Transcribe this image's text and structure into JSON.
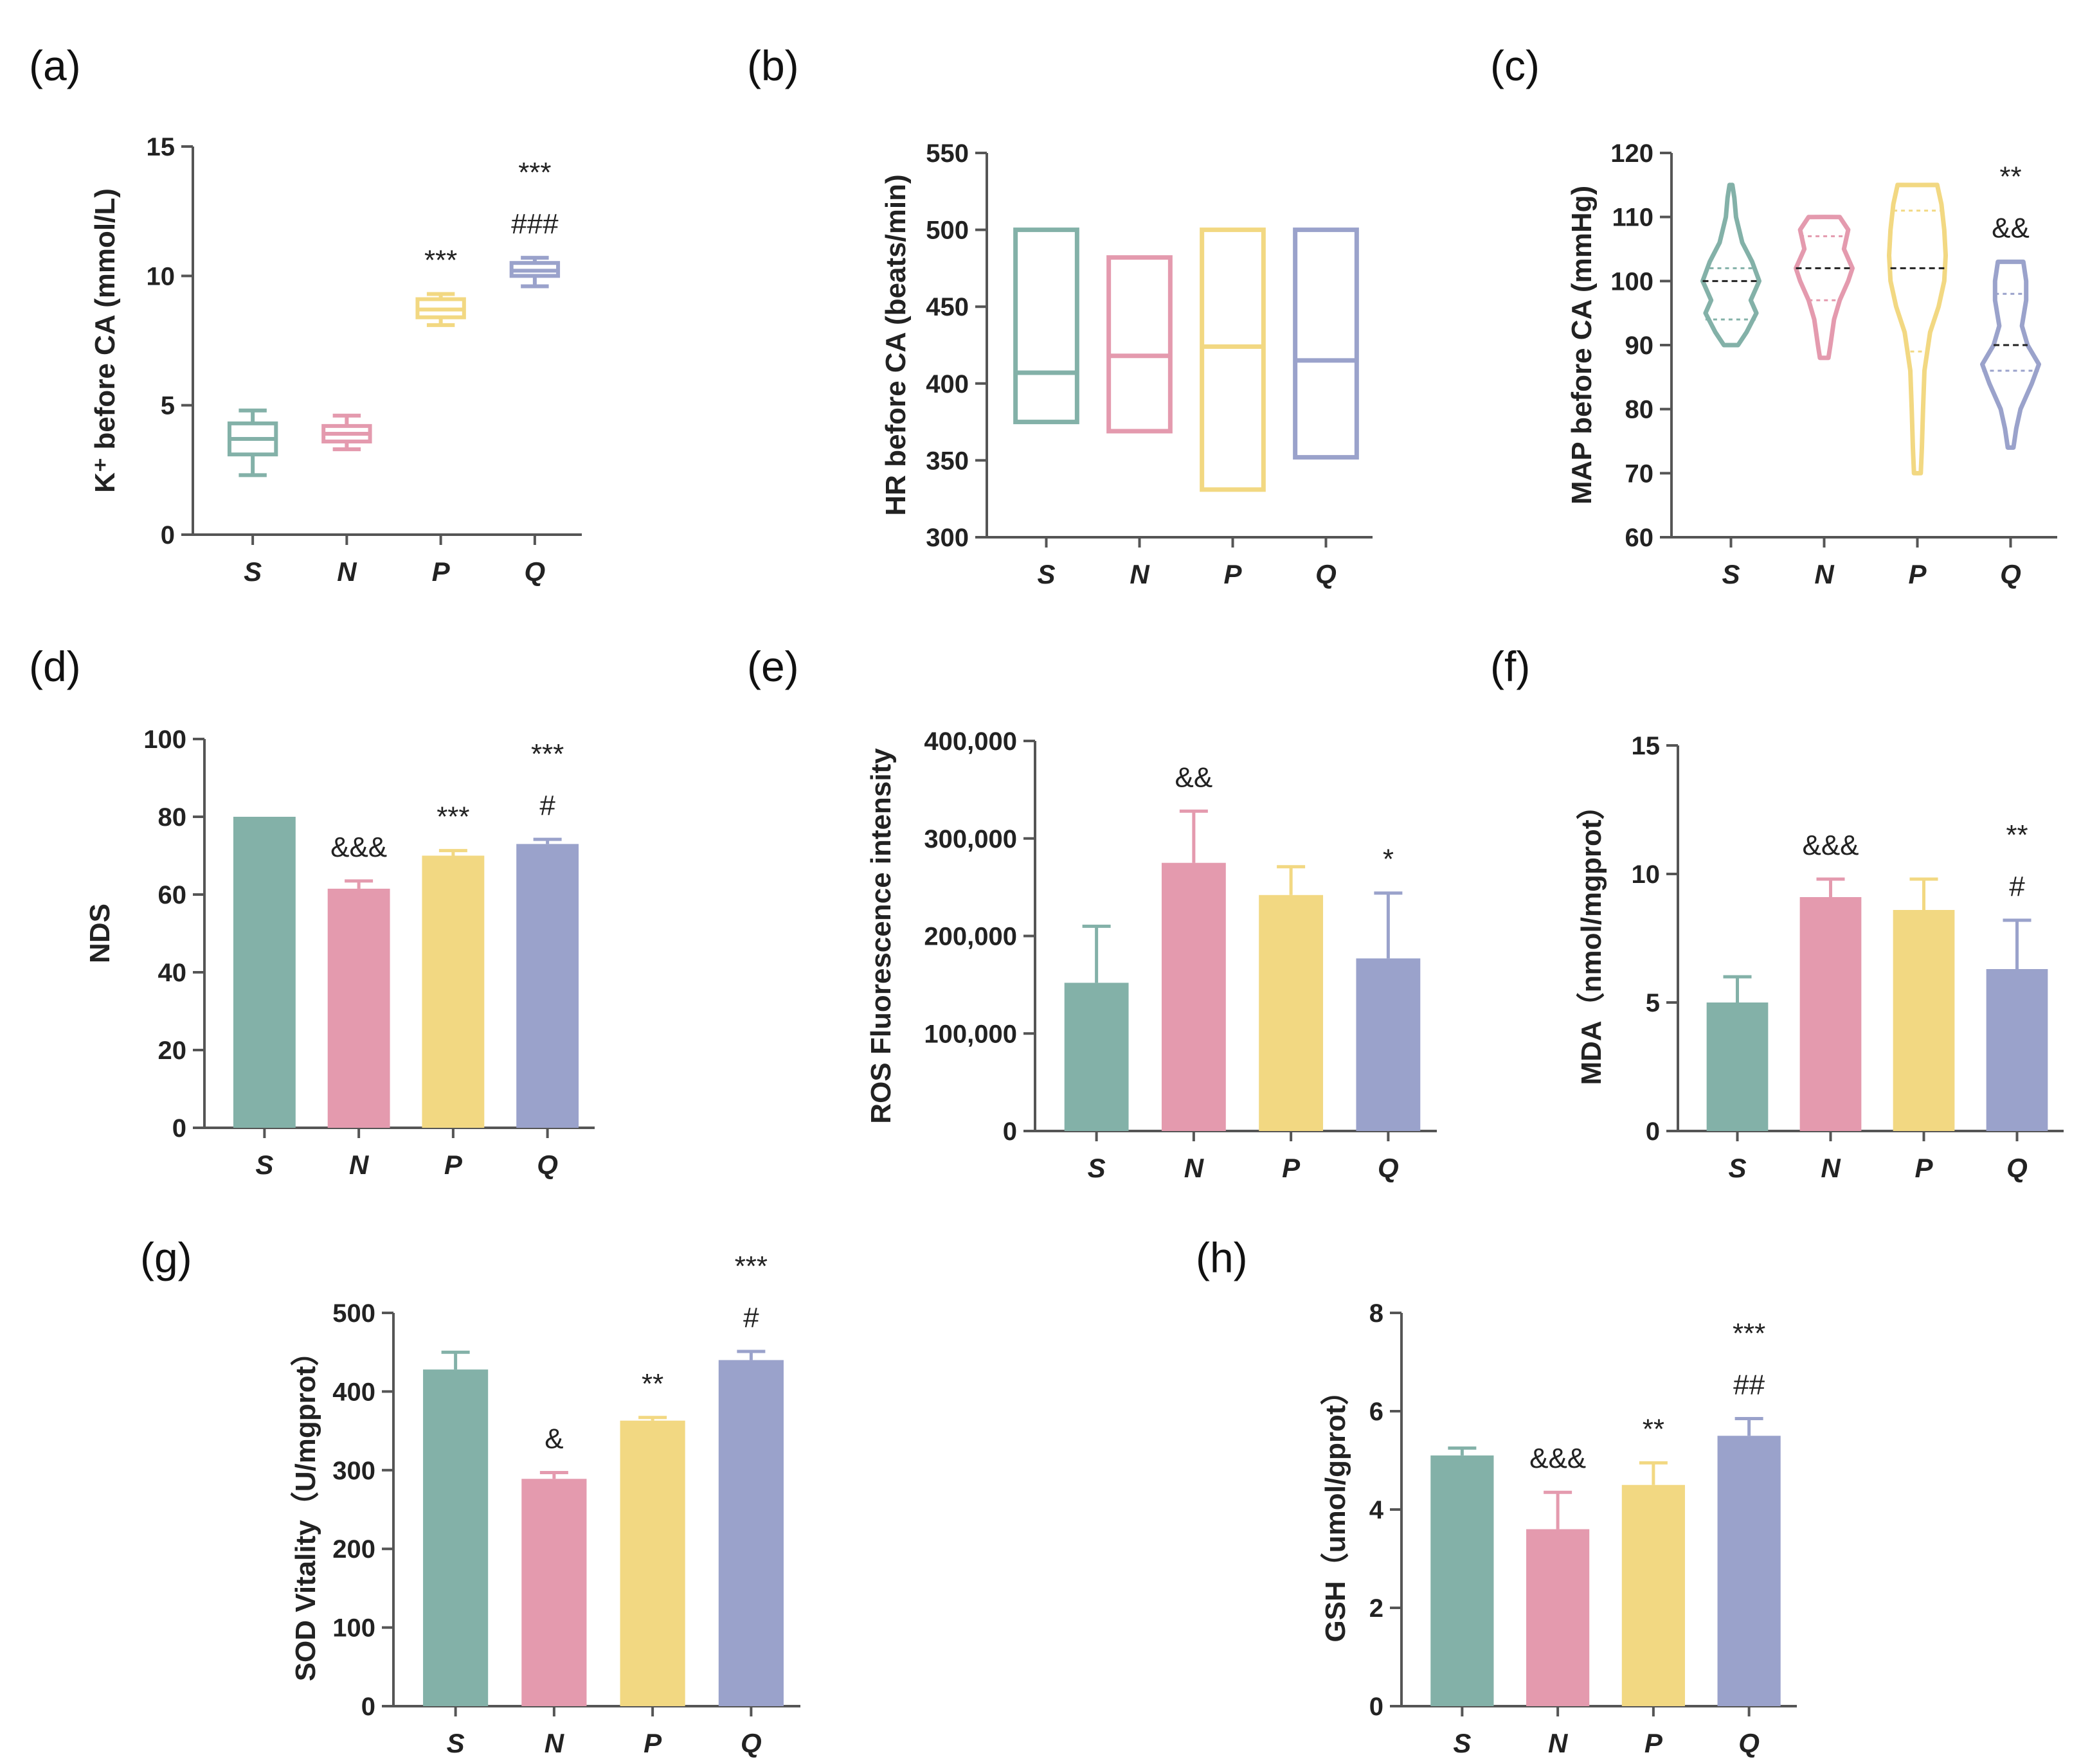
{
  "figure": {
    "title": ""
  },
  "colors": {
    "S": "#83b1a8",
    "N": "#e49aae",
    "P": "#f2d882",
    "Q": "#9aa2cb",
    "axis": "#555555",
    "text": "#222222"
  },
  "chart_data": [
    {
      "id": "a",
      "panel_label": "(a)",
      "type": "box",
      "ylabel": "K⁺ before CA (mmol/L)",
      "ylim": [
        0,
        15
      ],
      "yticks": [
        0,
        5,
        10,
        15
      ],
      "categories": [
        "S",
        "N",
        "P",
        "Q"
      ],
      "boxes": [
        {
          "min": 2.3,
          "q1": 3.1,
          "median": 3.7,
          "q3": 4.3,
          "max": 4.8
        },
        {
          "min": 3.3,
          "q1": 3.6,
          "median": 3.9,
          "q3": 4.2,
          "max": 4.6
        },
        {
          "min": 8.1,
          "q1": 8.4,
          "median": 8.7,
          "q3": 9.1,
          "max": 9.3
        },
        {
          "min": 9.6,
          "q1": 10.0,
          "median": 10.2,
          "q3": 10.5,
          "max": 10.7
        }
      ],
      "annotations": [
        {
          "category": "P",
          "lines": [
            "***"
          ]
        },
        {
          "category": "Q",
          "lines": [
            "***",
            "###"
          ]
        }
      ]
    },
    {
      "id": "b",
      "panel_label": "(b)",
      "type": "floating_bar",
      "ylabel": "HR before CA (beats/min)",
      "ylim": [
        300,
        550
      ],
      "yticks": [
        300,
        350,
        400,
        450,
        500,
        550
      ],
      "categories": [
        "S",
        "N",
        "P",
        "Q"
      ],
      "ranges": [
        {
          "min": 375,
          "median": 407,
          "max": 500
        },
        {
          "min": 369,
          "median": 418,
          "max": 482
        },
        {
          "min": 331,
          "median": 424,
          "max": 500
        },
        {
          "min": 352,
          "median": 415,
          "max": 500
        }
      ],
      "annotations": []
    },
    {
      "id": "c",
      "panel_label": "(c)",
      "type": "violin",
      "ylabel": "MAP before CA (mmHg)",
      "ylim": [
        60,
        120
      ],
      "yticks": [
        60,
        70,
        80,
        90,
        100,
        110,
        120
      ],
      "categories": [
        "S",
        "N",
        "P",
        "Q"
      ],
      "violins": [
        {
          "min": 90,
          "max": 115,
          "median": 100,
          "q1": 94,
          "q3": 102,
          "profile": [
            [
              90,
              0.25
            ],
            [
              92,
              0.55
            ],
            [
              95,
              0.9
            ],
            [
              97,
              0.7
            ],
            [
              100,
              1.0
            ],
            [
              103,
              0.75
            ],
            [
              106,
              0.4
            ],
            [
              110,
              0.18
            ],
            [
              113,
              0.12
            ],
            [
              115,
              0.05
            ]
          ]
        },
        {
          "min": 88,
          "max": 110,
          "median": 102,
          "q1": 97,
          "q3": 107,
          "profile": [
            [
              88,
              0.15
            ],
            [
              90,
              0.22
            ],
            [
              94,
              0.35
            ],
            [
              97,
              0.55
            ],
            [
              100,
              0.85
            ],
            [
              102,
              1.0
            ],
            [
              105,
              0.7
            ],
            [
              108,
              0.85
            ],
            [
              110,
              0.55
            ]
          ]
        },
        {
          "min": 70,
          "max": 115,
          "median": 102,
          "q1": 89,
          "q3": 111,
          "profile": [
            [
              70,
              0.12
            ],
            [
              74,
              0.16
            ],
            [
              80,
              0.2
            ],
            [
              86,
              0.25
            ],
            [
              92,
              0.45
            ],
            [
              96,
              0.75
            ],
            [
              100,
              0.95
            ],
            [
              104,
              1.0
            ],
            [
              108,
              0.95
            ],
            [
              112,
              0.85
            ],
            [
              115,
              0.7
            ]
          ]
        },
        {
          "min": 74,
          "max": 103,
          "median": 90,
          "q1": 86,
          "q3": 98,
          "profile": [
            [
              74,
              0.1
            ],
            [
              77,
              0.2
            ],
            [
              80,
              0.35
            ],
            [
              84,
              0.75
            ],
            [
              87,
              1.0
            ],
            [
              90,
              0.6
            ],
            [
              93,
              0.4
            ],
            [
              97,
              0.55
            ],
            [
              100,
              0.55
            ],
            [
              103,
              0.45
            ]
          ]
        }
      ],
      "annotations": [
        {
          "category": "Q",
          "lines": [
            "**",
            "&&"
          ]
        }
      ]
    },
    {
      "id": "d",
      "panel_label": "(d)",
      "type": "bar",
      "ylabel": "NDS",
      "ylim": [
        0,
        100
      ],
      "yticks": [
        0,
        20,
        40,
        60,
        80,
        100
      ],
      "categories": [
        "S",
        "N",
        "P",
        "Q"
      ],
      "values": [
        80,
        61.5,
        70,
        73
      ],
      "errors": [
        0,
        2,
        1.3,
        1.2
      ],
      "annotations": [
        {
          "category": "N",
          "lines": [
            "&&&"
          ]
        },
        {
          "category": "P",
          "lines": [
            "***"
          ]
        },
        {
          "category": "Q",
          "lines": [
            "***",
            "#"
          ]
        }
      ]
    },
    {
      "id": "e",
      "panel_label": "(e)",
      "type": "bar",
      "ylabel": "ROS Fluorescence intensity",
      "ylim": [
        0,
        400000
      ],
      "yticks": [
        0,
        100000,
        200000,
        300000,
        400000
      ],
      "ytick_labels": [
        "0",
        "100,000",
        "200,000",
        "300,000",
        "400,000"
      ],
      "categories": [
        "S",
        "N",
        "P",
        "Q"
      ],
      "values": [
        152000,
        275000,
        242000,
        177000
      ],
      "errors": [
        58000,
        53000,
        29000,
        67000
      ],
      "annotations": [
        {
          "category": "N",
          "lines": [
            "&&"
          ]
        },
        {
          "category": "Q",
          "lines": [
            "*"
          ]
        }
      ]
    },
    {
      "id": "f",
      "panel_label": "(f)",
      "type": "bar",
      "ylabel": "MDA（nmol/mgprot）",
      "ylim": [
        0,
        15
      ],
      "yticks": [
        0,
        5,
        10,
        15
      ],
      "categories": [
        "S",
        "N",
        "P",
        "Q"
      ],
      "values": [
        5.0,
        9.1,
        8.6,
        6.3
      ],
      "errors": [
        1.0,
        0.7,
        1.2,
        1.9
      ],
      "annotations": [
        {
          "category": "N",
          "lines": [
            "&&&"
          ]
        },
        {
          "category": "Q",
          "lines": [
            "**",
            "#"
          ]
        }
      ]
    },
    {
      "id": "g",
      "panel_label": "(g)",
      "type": "bar",
      "ylabel": "SOD Vitality（U/mgprot）",
      "ylim": [
        0,
        500
      ],
      "yticks": [
        0,
        100,
        200,
        300,
        400,
        500
      ],
      "categories": [
        "S",
        "N",
        "P",
        "Q"
      ],
      "values": [
        428,
        289,
        363,
        440
      ],
      "errors": [
        22,
        8,
        4,
        11
      ],
      "annotations": [
        {
          "category": "N",
          "lines": [
            "&"
          ]
        },
        {
          "category": "P",
          "lines": [
            "**"
          ]
        },
        {
          "category": "Q",
          "lines": [
            "***",
            "#"
          ]
        }
      ]
    },
    {
      "id": "h",
      "panel_label": "(h)",
      "type": "bar",
      "ylabel": "GSH（umol/gprot）",
      "ylim": [
        0,
        8
      ],
      "yticks": [
        0,
        2,
        4,
        6,
        8
      ],
      "categories": [
        "S",
        "N",
        "P",
        "Q"
      ],
      "values": [
        5.1,
        3.6,
        4.5,
        5.5
      ],
      "errors": [
        0.15,
        0.75,
        0.45,
        0.35
      ],
      "annotations": [
        {
          "category": "N",
          "lines": [
            "&&&"
          ]
        },
        {
          "category": "P",
          "lines": [
            "**"
          ]
        },
        {
          "category": "Q",
          "lines": [
            "***",
            "##"
          ]
        }
      ]
    }
  ]
}
